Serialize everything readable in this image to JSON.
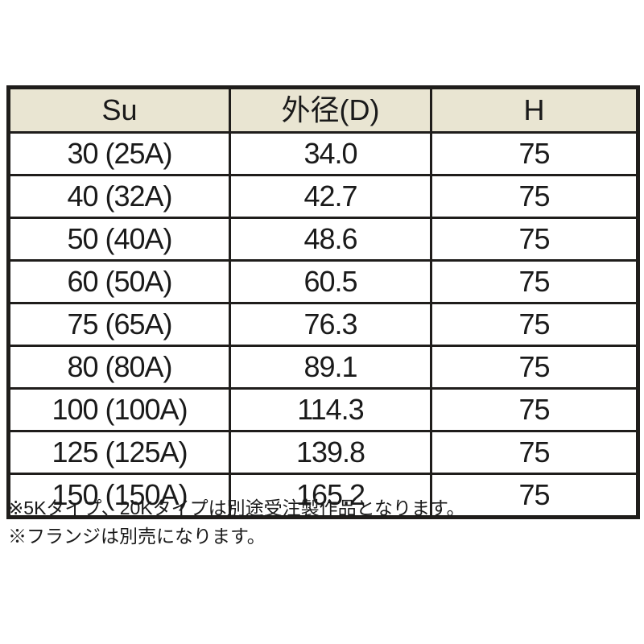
{
  "table": {
    "columns": [
      "Su",
      "外径(D)",
      "H"
    ],
    "rows": [
      [
        "30 (25A)",
        "34.0",
        "75"
      ],
      [
        "40 (32A)",
        "42.7",
        "75"
      ],
      [
        "50 (40A)",
        "48.6",
        "75"
      ],
      [
        "60 (50A)",
        "60.5",
        "75"
      ],
      [
        "75 (65A)",
        "76.3",
        "75"
      ],
      [
        "80 (80A)",
        "89.1",
        "75"
      ],
      [
        "100 (100A)",
        "114.3",
        "75"
      ],
      [
        "125 (125A)",
        "139.8",
        "75"
      ],
      [
        "150 (150A)",
        "165.2",
        "75"
      ]
    ],
    "colors": {
      "header_bg": "#e9e5d2",
      "border": "#1f1d1b",
      "text": "#1a1a1a"
    }
  },
  "notes": [
    "※5Kタイプ、20Kタイプは別途受注製作品となります。",
    "※フランジは別売になります。"
  ]
}
